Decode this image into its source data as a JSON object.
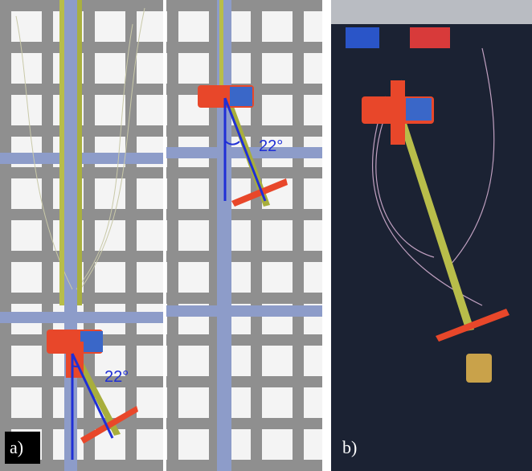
{
  "panels": [
    {
      "label": "a)",
      "angle_labels": [
        "22°",
        "22°"
      ]
    },
    {
      "label": "b)"
    }
  ]
}
